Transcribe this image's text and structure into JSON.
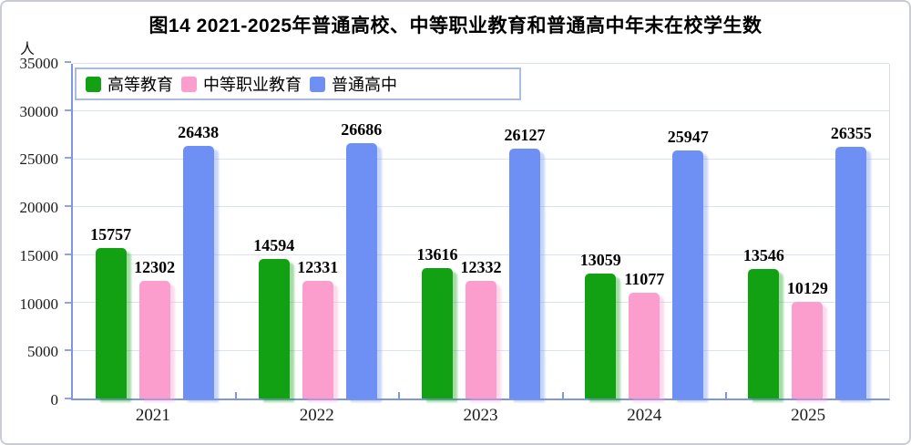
{
  "frame": {
    "border_color": "#c9cdd3"
  },
  "chart_data": {
    "type": "bar",
    "title": "图14 2021-2025年普通高校、中等职业教育和普通高中年末在校学生数",
    "unit_label": "人",
    "categories": [
      "2021",
      "2022",
      "2023",
      "2024",
      "2025"
    ],
    "series": [
      {
        "name": "高等教育",
        "color": "#12A112",
        "values": [
          15757,
          14594,
          13616,
          13059,
          13546
        ]
      },
      {
        "name": "中等职业教育",
        "color": "#FC9ECD",
        "values": [
          12302,
          12331,
          12332,
          11077,
          10129
        ]
      },
      {
        "name": "普通高中",
        "color": "#6E90F5",
        "values": [
          26438,
          26686,
          26127,
          25947,
          26355
        ]
      }
    ],
    "ylim": [
      0,
      35000
    ],
    "ytick_step": 5000,
    "yticks": [
      "0",
      "5000",
      "10000",
      "15000",
      "20000",
      "25000",
      "30000",
      "35000"
    ],
    "grid": true,
    "value_labels_shown": true,
    "legend_position": "top-left",
    "axis_color": "#7E96E3",
    "gridline_color": "#DCE3F0"
  }
}
